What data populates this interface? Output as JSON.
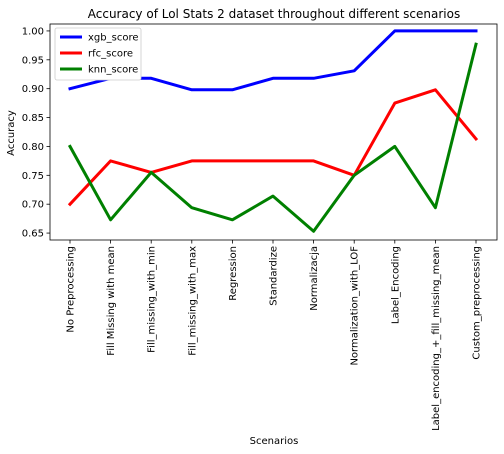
{
  "chart_data": {
    "type": "line",
    "title": "Accuracy of Lol Stats 2 dataset throughout different scenarios",
    "xlabel": "Scenarios",
    "ylabel": "Accuracy",
    "ylim": [
      0.638,
      1.012
    ],
    "yticks": [
      0.65,
      0.7,
      0.75,
      0.8,
      0.85,
      0.9,
      0.95,
      1.0
    ],
    "ytick_labels": [
      "0.65",
      "0.70",
      "0.75",
      "0.80",
      "0.85",
      "0.90",
      "0.95",
      "1.00"
    ],
    "categories": [
      "No Preprocessing",
      "Fill Missing with mean",
      "Fill_missing_with_min",
      "Fill_missing_with_max",
      "Regression",
      "Standardize",
      "Normalizacja",
      "Normalization_with_LOF",
      "Label_Encoding",
      "Label_encoding_+_fill_missing_mean",
      "Custom_preprocessing"
    ],
    "legend_position": "top-left",
    "grid": false,
    "series": [
      {
        "name": "xgb_score",
        "color": "#0000ff",
        "values": [
          0.9,
          0.918,
          0.918,
          0.898,
          0.898,
          0.918,
          0.918,
          0.931,
          1.0,
          1.0,
          1.0
        ]
      },
      {
        "name": "rfc_score",
        "color": "#ff0000",
        "values": [
          0.7,
          0.775,
          0.755,
          0.775,
          0.775,
          0.775,
          0.775,
          0.75,
          0.875,
          0.898,
          0.813
        ]
      },
      {
        "name": "knn_score",
        "color": "#008000",
        "values": [
          0.8,
          0.673,
          0.755,
          0.694,
          0.673,
          0.714,
          0.653,
          0.75,
          0.8,
          0.694,
          0.977
        ]
      }
    ]
  }
}
